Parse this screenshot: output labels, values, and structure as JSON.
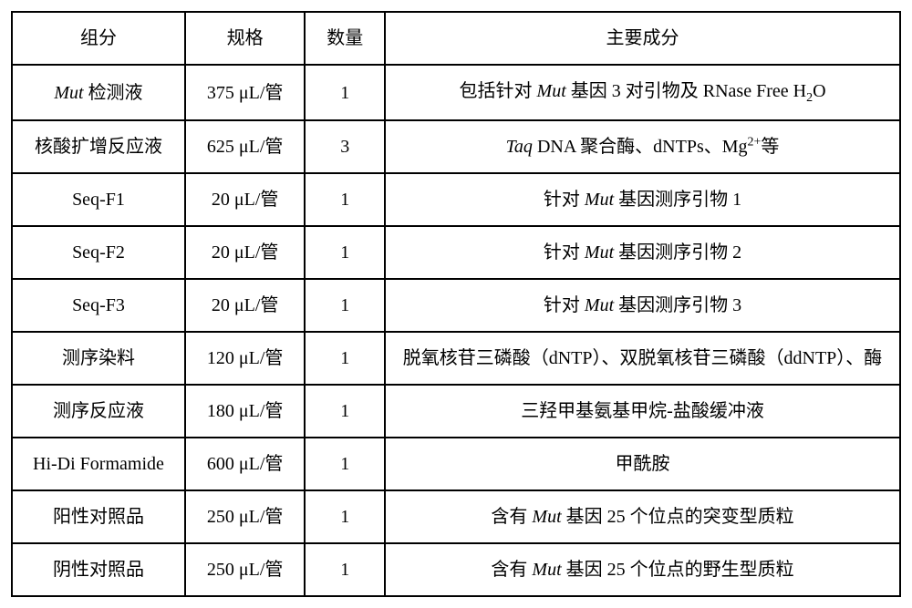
{
  "table": {
    "headers": [
      "组分",
      "规格",
      "数量",
      "主要成分"
    ],
    "columnWidths": [
      "19.5%",
      "13.5%",
      "9%",
      "58%"
    ],
    "rows": [
      {
        "component": {
          "prefix_italic": "Mut",
          "suffix": " 检测液"
        },
        "spec": "375 μL/管",
        "qty": "1",
        "ingredients": {
          "prefix": "包括针对 ",
          "italic1": "Mut",
          "mid": " 基因 3 对引物及 RNase Free H",
          "sub": "2",
          "suffix": "O"
        }
      },
      {
        "component": {
          "text": "核酸扩增反应液"
        },
        "spec": "625 μL/管",
        "qty": "3",
        "ingredients": {
          "italic1": "Taq",
          "mid": " DNA 聚合酶、dNTPs、Mg",
          "sup": "2+",
          "suffix": "等"
        }
      },
      {
        "component": {
          "text": "Seq-F1"
        },
        "spec": "20 μL/管",
        "qty": "1",
        "ingredients": {
          "prefix": "针对 ",
          "italic1": "Mut",
          "suffix": " 基因测序引物 1"
        }
      },
      {
        "component": {
          "text": "Seq-F2"
        },
        "spec": "20 μL/管",
        "qty": "1",
        "ingredients": {
          "prefix": "针对 ",
          "italic1": "Mut",
          "suffix": " 基因测序引物 2"
        }
      },
      {
        "component": {
          "text": "Seq-F3"
        },
        "spec": "20 μL/管",
        "qty": "1",
        "ingredients": {
          "prefix": "针对 ",
          "italic1": "Mut",
          "suffix": " 基因测序引物 3"
        }
      },
      {
        "component": {
          "text": "测序染料"
        },
        "spec": "120 μL/管",
        "qty": "1",
        "ingredients": {
          "text": "脱氧核苷三磷酸（dNTP）、双脱氧核苷三磷酸（ddNTP）、酶"
        }
      },
      {
        "component": {
          "text": "测序反应液"
        },
        "spec": "180 μL/管",
        "qty": "1",
        "ingredients": {
          "text": "三羟甲基氨基甲烷-盐酸缓冲液"
        }
      },
      {
        "component": {
          "text": "Hi-Di Formamide"
        },
        "spec": "600 μL/管",
        "qty": "1",
        "ingredients": {
          "text": "甲酰胺"
        }
      },
      {
        "component": {
          "text": "阳性对照品"
        },
        "spec": "250 μL/管",
        "qty": "1",
        "ingredients": {
          "prefix": "含有 ",
          "italic1": "Mut",
          "suffix": " 基因 25 个位点的突变型质粒"
        }
      },
      {
        "component": {
          "text": "阴性对照品"
        },
        "spec": "250 μL/管",
        "qty": "1",
        "ingredients": {
          "prefix": "含有 ",
          "italic1": "Mut",
          "suffix": " 基因 25 个位点的野生型质粒"
        }
      }
    ],
    "borderColor": "#000000",
    "backgroundColor": "#ffffff",
    "fontSize": 20,
    "fontFamily": "SimSun"
  }
}
